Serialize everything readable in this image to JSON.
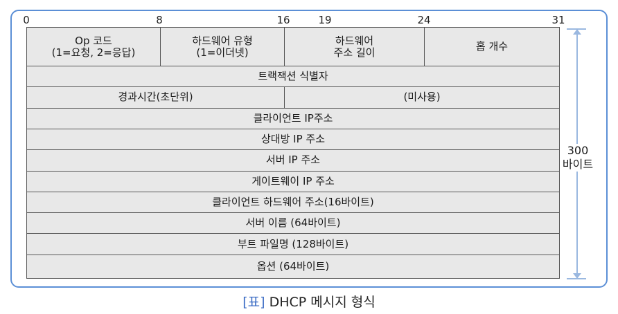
{
  "bit_labels": [
    "0",
    "8",
    "16",
    "19",
    "24",
    "31"
  ],
  "rows": [
    [
      "Op 코드\n(1=요청, 2=응답)",
      "하드웨어 유형\n(1=이더넷)",
      "하드웨어\n주소 길이",
      "홉 개수"
    ],
    [
      "트랙잭션 식별자"
    ],
    [
      "경과시간(초단위)",
      "(미사용)"
    ],
    [
      "클라이언트 IP주소"
    ],
    [
      "상대방 IP 주소"
    ],
    [
      "서버  IP 주소"
    ],
    [
      "게이트웨이  IP 주소"
    ],
    [
      "클라이언트 하드웨어 주소(16바이트)"
    ],
    [
      "서버 이름 (64바이트)"
    ],
    [
      "부트 파일명 (128바이트)"
    ],
    [
      "옵션 (64바이트)"
    ]
  ],
  "side_label": "300\n바이트",
  "caption": {
    "bracket": "[표]",
    "text": " DHCP 메시지 형식"
  },
  "colors": {
    "frame": "#5b8fd6",
    "cell_bg": "#e8e8e8",
    "accent": "#3b6cc4"
  }
}
